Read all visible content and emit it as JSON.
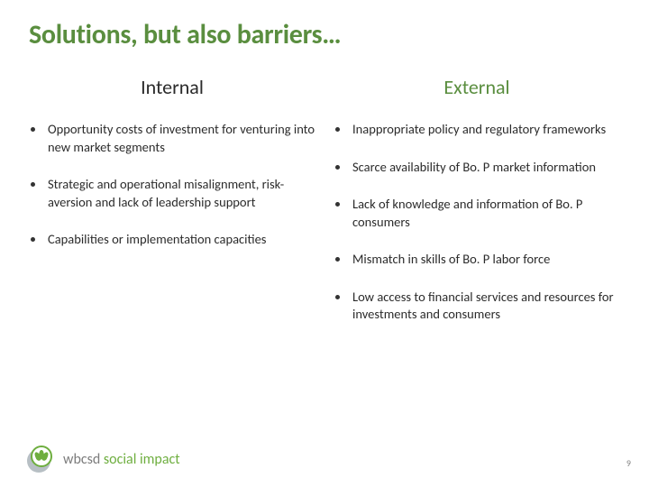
{
  "colors": {
    "title": "#5a8e3f",
    "heading_green": "#5a8e3f",
    "body": "#2b2b2b",
    "leaf_green": "#6eae3f",
    "logo_grey": "#7d7d7d"
  },
  "title": "Solutions, but also barriers…",
  "columns": {
    "left": {
      "heading": "Internal",
      "items": [
        "Opportunity costs of investment for venturing into new market segments",
        "Strategic and operational misalignment, risk-aversion and lack of leadership support",
        "Capabilities or implementation capacities"
      ]
    },
    "right": {
      "heading": "External",
      "items": [
        "Inappropriate policy and regulatory frameworks",
        "Scarce availability of Bo. P market information",
        "Lack of knowledge and information of Bo. P consumers",
        "Mismatch in skills of Bo. P labor force",
        "Low access to financial services and resources for investments and consumers"
      ]
    }
  },
  "footer": {
    "logo_word1": "wbcsd ",
    "logo_word2": "social impact"
  },
  "page_number": "9"
}
